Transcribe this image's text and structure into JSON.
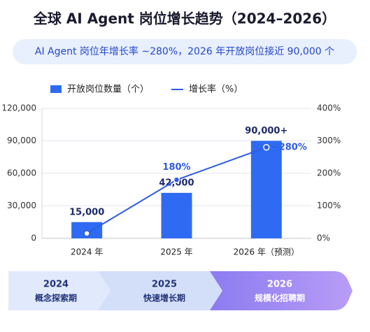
{
  "chart_data": {
    "type": "bar-line",
    "title": "全球 AI Agent 岗位增长趋势（2024–2026）",
    "subtitle": "AI Agent 岗位年增长率 ~280%，2026 年开放岗位接近 90,000 个",
    "categories": [
      "2024 年",
      "2025 年",
      "2026 年（预测）"
    ],
    "series": [
      {
        "name": "开放岗位数量（个）",
        "color": "#2f6bf2",
        "values": [
          15000,
          42000,
          90000
        ],
        "value_labels": [
          "15,000",
          "42,000",
          "90,000+"
        ]
      },
      {
        "name": "增长率（%）",
        "color": "#2f5ce6",
        "axis": "y2",
        "values": [
          15,
          180,
          280
        ],
        "value_labels": [
          null,
          "180%",
          "~280%"
        ]
      }
    ],
    "ylim": [
      0,
      120000
    ],
    "yticks": [
      0,
      {
        "value": 30000,
        "label": "30,000"
      },
      {
        "value": 60000,
        "label": "60,000"
      },
      {
        "value": 90000,
        "label": "90,000"
      },
      {
        "value": 120000,
        "label": "120,000"
      }
    ],
    "y2lim": [
      0,
      400
    ],
    "y2ticks": [
      {
        "value": 0,
        "label": "0%"
      },
      {
        "value": 100,
        "label": "100%"
      },
      {
        "value": 200,
        "label": "200%"
      },
      {
        "value": 300,
        "label": "300%"
      },
      {
        "value": 400,
        "label": "400%"
      }
    ],
    "grid": true,
    "phases": [
      {
        "year": "2024",
        "label": "概念探索期"
      },
      {
        "year": "2025",
        "label": "快速增长期"
      },
      {
        "year": "2026",
        "label": "规模化招聘期"
      }
    ]
  }
}
